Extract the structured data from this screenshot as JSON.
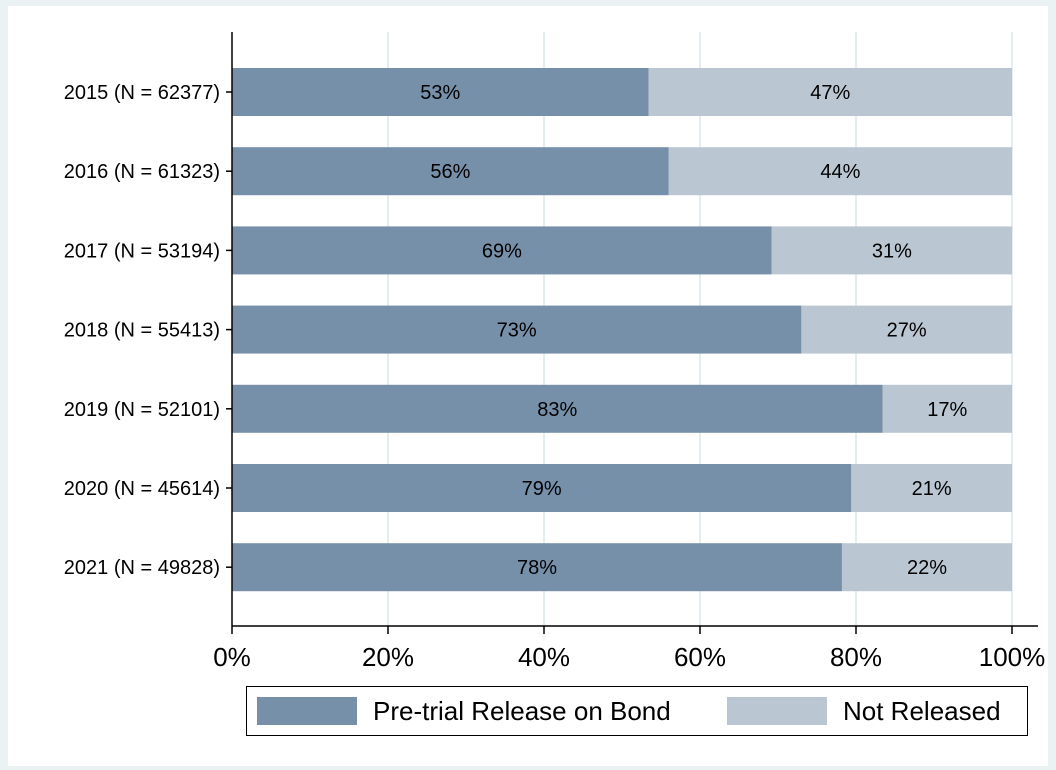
{
  "chart_data": {
    "type": "bar",
    "orientation": "horizontal",
    "stacked": true,
    "categories": [
      "2015 (N = 62377)",
      "2016 (N = 61323)",
      "2017 (N = 53194)",
      "2018 (N = 55413)",
      "2019 (N = 52101)",
      "2020 (N = 45614)",
      "2021 (N = 49828)"
    ],
    "series": [
      {
        "name": "Pre-trial Release on Bond",
        "color": "#7790aa",
        "values": [
          53.4,
          56.0,
          69.2,
          73.0,
          83.4,
          79.4,
          78.2
        ],
        "labels": [
          "53%",
          "56%",
          "69%",
          "73%",
          "83%",
          "79%",
          "78%"
        ]
      },
      {
        "name": "Not Released",
        "color": "#bac7d2",
        "values": [
          46.6,
          44.0,
          30.8,
          27.0,
          16.6,
          20.6,
          21.8
        ],
        "labels": [
          "47%",
          "44%",
          "31%",
          "27%",
          "17%",
          "21%",
          "22%"
        ]
      }
    ],
    "xlim": [
      0,
      100
    ],
    "x_ticks": [
      0,
      20,
      40,
      60,
      80,
      100
    ],
    "x_tick_labels": [
      "0%",
      "20%",
      "40%",
      "60%",
      "80%",
      "100%"
    ],
    "grid": true,
    "legend_position": "bottom",
    "colors": {
      "background": "#eaf2f3",
      "plot_background": "#ffffff",
      "grid": "#e4eef1"
    }
  }
}
